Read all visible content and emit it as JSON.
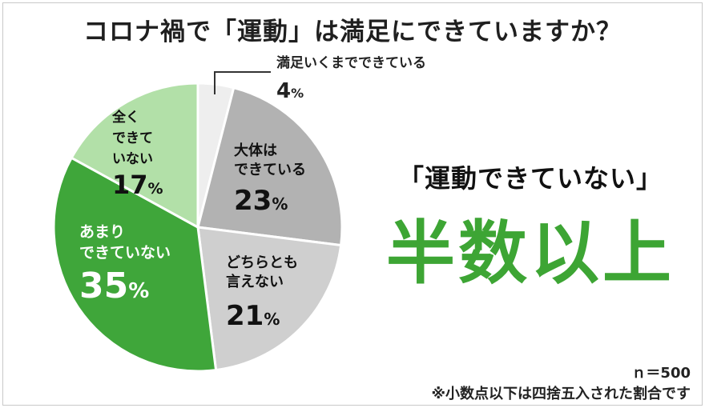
{
  "title": "コロナ禍で「運動」は満足にできていますか？",
  "chart_data": {
    "type": "pie",
    "slices": [
      {
        "label": "満足いくまでできている",
        "value": 4,
        "display": "4%",
        "color": "#eeeeee"
      },
      {
        "label": "大体はできている",
        "value": 23,
        "display": "23%",
        "color": "#b2b2b2"
      },
      {
        "label": "どちらとも言えない",
        "value": 21,
        "display": "21%",
        "color": "#cfcfcf"
      },
      {
        "label": "あまりできていない",
        "value": 35,
        "display": "35%",
        "color": "#3fa63a"
      },
      {
        "label": "全くできていない",
        "value": 17,
        "display": "17%",
        "color": "#b2e0a8"
      }
    ]
  },
  "callout": {
    "top": "「運動できていない」",
    "main": "半数以上"
  },
  "notes": {
    "n": "ｎ＝500",
    "rounding": "※小数点以下は四捨五入された割合です"
  }
}
